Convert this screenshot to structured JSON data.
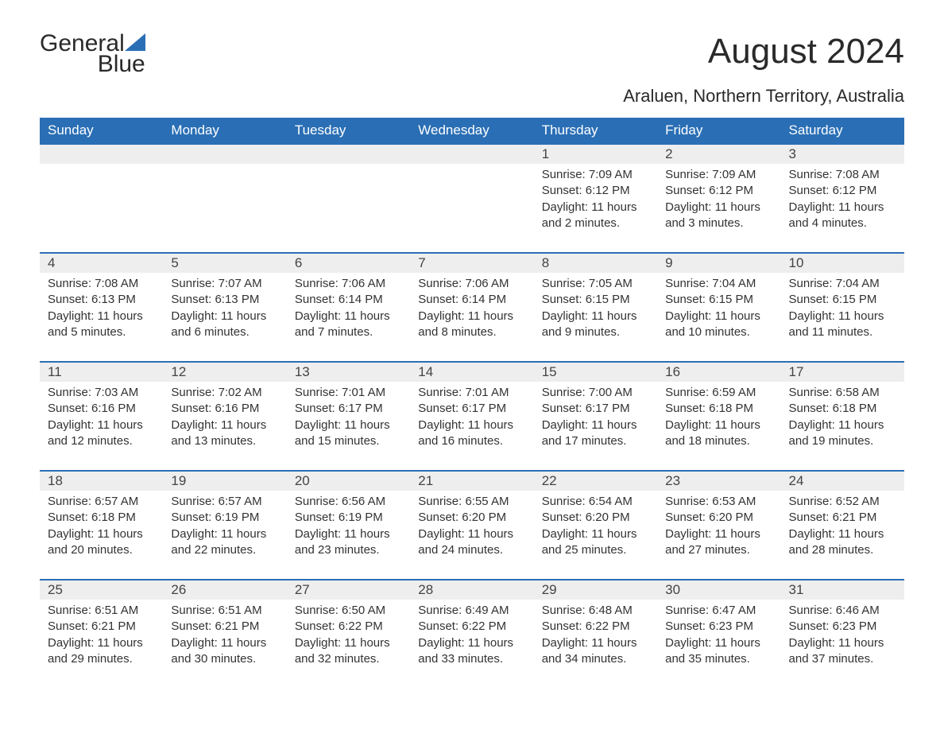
{
  "logo": {
    "part1": "General",
    "part2": "Blue"
  },
  "title": "August 2024",
  "location": "Araluen, Northern Territory, Australia",
  "columns": [
    "Sunday",
    "Monday",
    "Tuesday",
    "Wednesday",
    "Thursday",
    "Friday",
    "Saturday"
  ],
  "colors": {
    "header_bg": "#2a6fb5",
    "header_text": "#ffffff",
    "daynum_bg": "#eeeeee",
    "border_top": "#2a6fb5",
    "body_text": "#333333",
    "background": "#ffffff"
  },
  "weeks": [
    [
      null,
      null,
      null,
      null,
      {
        "n": "1",
        "sunrise": "Sunrise: 7:09 AM",
        "sunset": "Sunset: 6:12 PM",
        "daylight": "Daylight: 11 hours and 2 minutes."
      },
      {
        "n": "2",
        "sunrise": "Sunrise: 7:09 AM",
        "sunset": "Sunset: 6:12 PM",
        "daylight": "Daylight: 11 hours and 3 minutes."
      },
      {
        "n": "3",
        "sunrise": "Sunrise: 7:08 AM",
        "sunset": "Sunset: 6:12 PM",
        "daylight": "Daylight: 11 hours and 4 minutes."
      }
    ],
    [
      {
        "n": "4",
        "sunrise": "Sunrise: 7:08 AM",
        "sunset": "Sunset: 6:13 PM",
        "daylight": "Daylight: 11 hours and 5 minutes."
      },
      {
        "n": "5",
        "sunrise": "Sunrise: 7:07 AM",
        "sunset": "Sunset: 6:13 PM",
        "daylight": "Daylight: 11 hours and 6 minutes."
      },
      {
        "n": "6",
        "sunrise": "Sunrise: 7:06 AM",
        "sunset": "Sunset: 6:14 PM",
        "daylight": "Daylight: 11 hours and 7 minutes."
      },
      {
        "n": "7",
        "sunrise": "Sunrise: 7:06 AM",
        "sunset": "Sunset: 6:14 PM",
        "daylight": "Daylight: 11 hours and 8 minutes."
      },
      {
        "n": "8",
        "sunrise": "Sunrise: 7:05 AM",
        "sunset": "Sunset: 6:15 PM",
        "daylight": "Daylight: 11 hours and 9 minutes."
      },
      {
        "n": "9",
        "sunrise": "Sunrise: 7:04 AM",
        "sunset": "Sunset: 6:15 PM",
        "daylight": "Daylight: 11 hours and 10 minutes."
      },
      {
        "n": "10",
        "sunrise": "Sunrise: 7:04 AM",
        "sunset": "Sunset: 6:15 PM",
        "daylight": "Daylight: 11 hours and 11 minutes."
      }
    ],
    [
      {
        "n": "11",
        "sunrise": "Sunrise: 7:03 AM",
        "sunset": "Sunset: 6:16 PM",
        "daylight": "Daylight: 11 hours and 12 minutes."
      },
      {
        "n": "12",
        "sunrise": "Sunrise: 7:02 AM",
        "sunset": "Sunset: 6:16 PM",
        "daylight": "Daylight: 11 hours and 13 minutes."
      },
      {
        "n": "13",
        "sunrise": "Sunrise: 7:01 AM",
        "sunset": "Sunset: 6:17 PM",
        "daylight": "Daylight: 11 hours and 15 minutes."
      },
      {
        "n": "14",
        "sunrise": "Sunrise: 7:01 AM",
        "sunset": "Sunset: 6:17 PM",
        "daylight": "Daylight: 11 hours and 16 minutes."
      },
      {
        "n": "15",
        "sunrise": "Sunrise: 7:00 AM",
        "sunset": "Sunset: 6:17 PM",
        "daylight": "Daylight: 11 hours and 17 minutes."
      },
      {
        "n": "16",
        "sunrise": "Sunrise: 6:59 AM",
        "sunset": "Sunset: 6:18 PM",
        "daylight": "Daylight: 11 hours and 18 minutes."
      },
      {
        "n": "17",
        "sunrise": "Sunrise: 6:58 AM",
        "sunset": "Sunset: 6:18 PM",
        "daylight": "Daylight: 11 hours and 19 minutes."
      }
    ],
    [
      {
        "n": "18",
        "sunrise": "Sunrise: 6:57 AM",
        "sunset": "Sunset: 6:18 PM",
        "daylight": "Daylight: 11 hours and 20 minutes."
      },
      {
        "n": "19",
        "sunrise": "Sunrise: 6:57 AM",
        "sunset": "Sunset: 6:19 PM",
        "daylight": "Daylight: 11 hours and 22 minutes."
      },
      {
        "n": "20",
        "sunrise": "Sunrise: 6:56 AM",
        "sunset": "Sunset: 6:19 PM",
        "daylight": "Daylight: 11 hours and 23 minutes."
      },
      {
        "n": "21",
        "sunrise": "Sunrise: 6:55 AM",
        "sunset": "Sunset: 6:20 PM",
        "daylight": "Daylight: 11 hours and 24 minutes."
      },
      {
        "n": "22",
        "sunrise": "Sunrise: 6:54 AM",
        "sunset": "Sunset: 6:20 PM",
        "daylight": "Daylight: 11 hours and 25 minutes."
      },
      {
        "n": "23",
        "sunrise": "Sunrise: 6:53 AM",
        "sunset": "Sunset: 6:20 PM",
        "daylight": "Daylight: 11 hours and 27 minutes."
      },
      {
        "n": "24",
        "sunrise": "Sunrise: 6:52 AM",
        "sunset": "Sunset: 6:21 PM",
        "daylight": "Daylight: 11 hours and 28 minutes."
      }
    ],
    [
      {
        "n": "25",
        "sunrise": "Sunrise: 6:51 AM",
        "sunset": "Sunset: 6:21 PM",
        "daylight": "Daylight: 11 hours and 29 minutes."
      },
      {
        "n": "26",
        "sunrise": "Sunrise: 6:51 AM",
        "sunset": "Sunset: 6:21 PM",
        "daylight": "Daylight: 11 hours and 30 minutes."
      },
      {
        "n": "27",
        "sunrise": "Sunrise: 6:50 AM",
        "sunset": "Sunset: 6:22 PM",
        "daylight": "Daylight: 11 hours and 32 minutes."
      },
      {
        "n": "28",
        "sunrise": "Sunrise: 6:49 AM",
        "sunset": "Sunset: 6:22 PM",
        "daylight": "Daylight: 11 hours and 33 minutes."
      },
      {
        "n": "29",
        "sunrise": "Sunrise: 6:48 AM",
        "sunset": "Sunset: 6:22 PM",
        "daylight": "Daylight: 11 hours and 34 minutes."
      },
      {
        "n": "30",
        "sunrise": "Sunrise: 6:47 AM",
        "sunset": "Sunset: 6:23 PM",
        "daylight": "Daylight: 11 hours and 35 minutes."
      },
      {
        "n": "31",
        "sunrise": "Sunrise: 6:46 AM",
        "sunset": "Sunset: 6:23 PM",
        "daylight": "Daylight: 11 hours and 37 minutes."
      }
    ]
  ]
}
